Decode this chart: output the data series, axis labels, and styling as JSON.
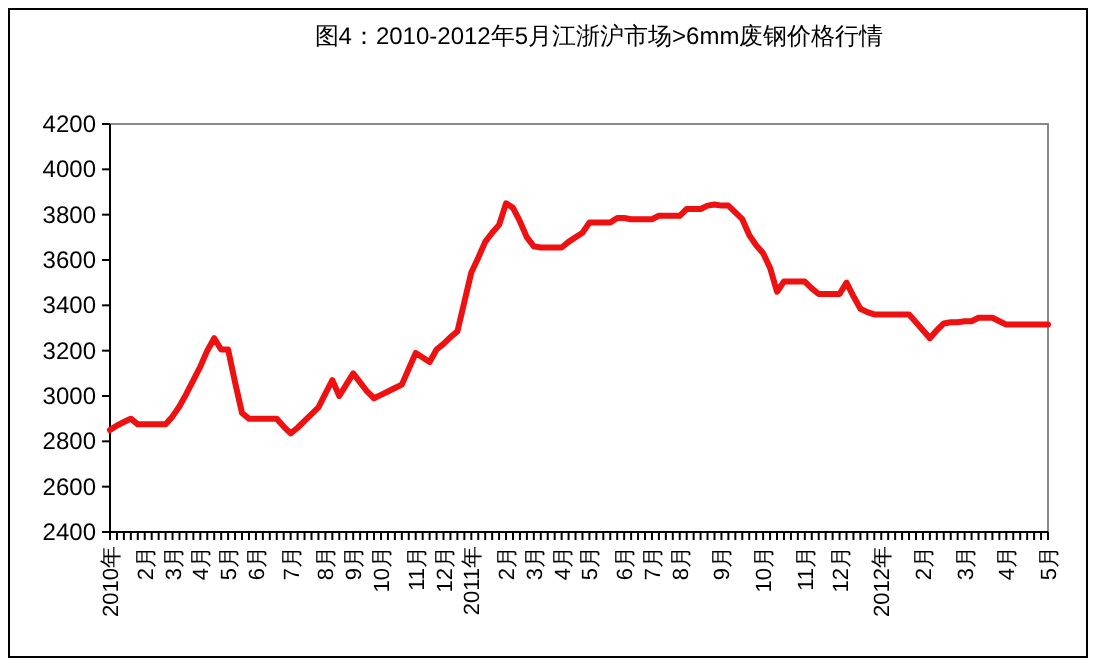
{
  "chart_data": {
    "type": "line",
    "title": "图4：2010-2012年5月江浙沪市场>6mm废钢价格行情",
    "categories": [
      "2010年",
      null,
      null,
      null,
      null,
      "2月",
      null,
      null,
      null,
      "3月",
      null,
      null,
      null,
      "4月",
      null,
      null,
      null,
      "5月",
      null,
      null,
      null,
      "6月",
      null,
      null,
      null,
      null,
      "7月",
      null,
      null,
      null,
      null,
      "8月",
      null,
      null,
      null,
      "9月",
      null,
      null,
      null,
      "10月",
      null,
      null,
      null,
      null,
      "11月",
      null,
      null,
      null,
      "12月",
      null,
      null,
      null,
      "2011年",
      null,
      null,
      null,
      null,
      "2月",
      null,
      null,
      null,
      "3月",
      null,
      null,
      null,
      "4月",
      null,
      null,
      null,
      "5月",
      null,
      null,
      null,
      null,
      "6月",
      null,
      null,
      null,
      "7月",
      null,
      null,
      null,
      "8月",
      null,
      null,
      null,
      null,
      null,
      "9月",
      null,
      null,
      null,
      null,
      null,
      "10月",
      null,
      null,
      null,
      null,
      null,
      "11月",
      null,
      null,
      null,
      null,
      "12月",
      null,
      null,
      null,
      null,
      null,
      "2012年",
      null,
      null,
      null,
      null,
      null,
      "2月",
      null,
      null,
      null,
      null,
      null,
      "3月",
      null,
      null,
      null,
      null,
      null,
      "4月",
      null,
      null,
      null,
      null,
      null,
      "5月"
    ],
    "series": [
      {
        "color": "#ee1111",
        "values": [
          2850,
          2870,
          2885,
          2900,
          2875,
          2875,
          2875,
          2875,
          2875,
          2910,
          2955,
          3010,
          3070,
          3130,
          3200,
          3255,
          3205,
          3205,
          3060,
          2925,
          2900,
          2900,
          2900,
          2900,
          2900,
          2865,
          2835,
          2860,
          2890,
          2920,
          2950,
          3010,
          3070,
          3000,
          3050,
          3100,
          3060,
          3020,
          2990,
          3005,
          3020,
          3035,
          3050,
          3120,
          3190,
          3170,
          3150,
          3205,
          3230,
          3260,
          3285,
          3415,
          3545,
          3610,
          3680,
          3720,
          3755,
          3850,
          3830,
          3770,
          3700,
          3660,
          3655,
          3655,
          3655,
          3655,
          3680,
          3700,
          3720,
          3765,
          3765,
          3765,
          3765,
          3785,
          3785,
          3780,
          3780,
          3780,
          3780,
          3795,
          3795,
          3795,
          3795,
          3825,
          3825,
          3825,
          3840,
          3845,
          3840,
          3840,
          3810,
          3780,
          3710,
          3665,
          3630,
          3565,
          3460,
          3505,
          3505,
          3505,
          3505,
          3475,
          3450,
          3450,
          3450,
          3450,
          3500,
          3440,
          3385,
          3370,
          3360,
          3360,
          3360,
          3360,
          3360,
          3360,
          3325,
          3290,
          3255,
          3290,
          3320,
          3325,
          3325,
          3330,
          3330,
          3345,
          3345,
          3345,
          3330,
          3315,
          3315,
          3315,
          3315,
          3315,
          3315,
          3315
        ]
      }
    ],
    "ylim": [
      2400,
      4200
    ],
    "yticks": [
      2400,
      2600,
      2800,
      3000,
      3200,
      3400,
      3600,
      3800,
      4000,
      4200
    ]
  }
}
